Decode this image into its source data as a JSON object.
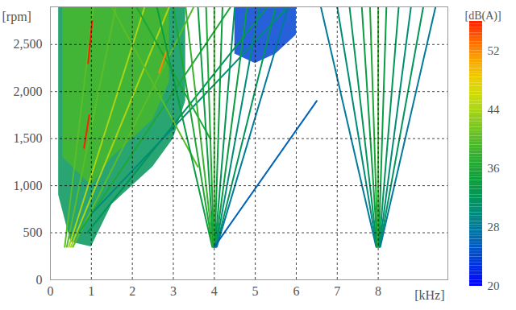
{
  "chart_data": {
    "type": "spectrogram",
    "y_label": "[rpm]",
    "x_label": "[kHz]",
    "xlim": [
      0,
      9.7
    ],
    "xticks": [
      0,
      1,
      2,
      3,
      4,
      5,
      6,
      7,
      8
    ],
    "ylim": [
      0,
      2900
    ],
    "yticks": [
      0,
      500,
      1000,
      1500,
      2000,
      2500
    ],
    "grid": true,
    "colorbar": {
      "label": "[dB(A)]",
      "range": [
        20,
        56
      ],
      "ticks": [
        20,
        28,
        36,
        44,
        52
      ],
      "colors": [
        "#0000ff",
        "#0050d0",
        "#008c8c",
        "#009a3a",
        "#30b030",
        "#8ccc20",
        "#e8e800",
        "#ff9a00",
        "#ff2000"
      ]
    },
    "regions": [
      {
        "x": [
          0.2,
          0.5,
          1.0,
          1.5,
          2.0,
          2.5,
          3.0,
          3.3
        ],
        "y1": [
          900,
          400,
          350,
          800,
          1000,
          1200,
          1500,
          1900
        ],
        "y2": [
          2900,
          2900,
          2900,
          2900,
          2900,
          2900,
          2900,
          2900
        ],
        "db": 32
      },
      {
        "x": [
          0.3,
          1.0,
          1.5,
          2.0,
          2.5,
          2.9
        ],
        "y1": [
          1300,
          1000,
          1300,
          1500,
          1700,
          2100
        ],
        "y2": [
          2900,
          2900,
          2900,
          2900,
          2900,
          2900
        ],
        "db": 39
      },
      {
        "x": [
          4.5,
          5.0,
          5.5,
          6.0
        ],
        "y1": [
          2400,
          2300,
          2400,
          2600
        ],
        "y2": [
          2900,
          2900,
          2900,
          2900
        ],
        "db": 24
      }
    ],
    "lines": [
      {
        "x": [
          0.35,
          1.05
        ],
        "y": [
          350,
          2900
        ],
        "db": 40
      },
      {
        "x": [
          0.4,
          1.6
        ],
        "y": [
          350,
          2900
        ],
        "db": 40
      },
      {
        "x": [
          0.45,
          2.3
        ],
        "y": [
          350,
          2900
        ],
        "db": 44
      },
      {
        "x": [
          0.5,
          2.9
        ],
        "y": [
          350,
          2900
        ],
        "db": 44
      },
      {
        "x": [
          0.55,
          3.5
        ],
        "y": [
          350,
          2900
        ],
        "db": 40
      },
      {
        "x": [
          0.7,
          4.4
        ],
        "y": [
          500,
          2900
        ],
        "db": 36
      },
      {
        "x": [
          0.9,
          5.3
        ],
        "y": [
          500,
          2900
        ],
        "db": 32
      },
      {
        "x": [
          1.0,
          5.8
        ],
        "y": [
          700,
          2900
        ],
        "db": 30
      },
      {
        "x": [
          1.5,
          3.6
        ],
        "y": [
          2900,
          1200
        ],
        "db": 40
      },
      {
        "x": [
          2.1,
          3.9
        ],
        "y": [
          2900,
          1500
        ],
        "db": 36
      },
      {
        "x": [
          0.82,
          0.95
        ],
        "y": [
          1400,
          1750
        ],
        "db": 56
      },
      {
        "x": [
          0.92,
          1.02
        ],
        "y": [
          2300,
          2750
        ],
        "db": 56
      },
      {
        "x": [
          2.65,
          2.85
        ],
        "y": [
          2200,
          2450
        ],
        "db": 52
      },
      {
        "x": [
          3.95,
          2.6
        ],
        "y": [
          350,
          2900
        ],
        "db": 34
      },
      {
        "x": [
          3.96,
          3.0
        ],
        "y": [
          350,
          2900
        ],
        "db": 36
      },
      {
        "x": [
          3.97,
          3.3
        ],
        "y": [
          350,
          2900
        ],
        "db": 38
      },
      {
        "x": [
          3.98,
          3.6
        ],
        "y": [
          350,
          2900
        ],
        "db": 34
      },
      {
        "x": [
          3.99,
          3.8
        ],
        "y": [
          350,
          2900
        ],
        "db": 36
      },
      {
        "x": [
          4.0,
          4.0
        ],
        "y": [
          350,
          2900
        ],
        "db": 38
      },
      {
        "x": [
          4.01,
          4.2
        ],
        "y": [
          350,
          2900
        ],
        "db": 34
      },
      {
        "x": [
          4.02,
          4.5
        ],
        "y": [
          350,
          2900
        ],
        "db": 32
      },
      {
        "x": [
          4.03,
          4.8
        ],
        "y": [
          350,
          2900
        ],
        "db": 34
      },
      {
        "x": [
          4.04,
          5.1
        ],
        "y": [
          350,
          2900
        ],
        "db": 30
      },
      {
        "x": [
          4.05,
          5.5
        ],
        "y": [
          350,
          2900
        ],
        "db": 32
      },
      {
        "x": [
          4.06,
          5.8
        ],
        "y": [
          350,
          2900
        ],
        "db": 28
      },
      {
        "x": [
          4.0,
          6.5
        ],
        "y": [
          350,
          1900
        ],
        "db": 26
      },
      {
        "x": [
          7.95,
          6.6
        ],
        "y": [
          350,
          2900
        ],
        "db": 28
      },
      {
        "x": [
          7.96,
          7.0
        ],
        "y": [
          350,
          2900
        ],
        "db": 30
      },
      {
        "x": [
          7.97,
          7.3
        ],
        "y": [
          350,
          2900
        ],
        "db": 32
      },
      {
        "x": [
          7.98,
          7.6
        ],
        "y": [
          350,
          2900
        ],
        "db": 34
      },
      {
        "x": [
          7.99,
          7.8
        ],
        "y": [
          350,
          2900
        ],
        "db": 36
      },
      {
        "x": [
          8.0,
          8.0
        ],
        "y": [
          350,
          2900
        ],
        "db": 38
      },
      {
        "x": [
          8.01,
          8.2
        ],
        "y": [
          350,
          2900
        ],
        "db": 34
      },
      {
        "x": [
          8.02,
          8.5
        ],
        "y": [
          350,
          2900
        ],
        "db": 32
      },
      {
        "x": [
          8.03,
          8.8
        ],
        "y": [
          350,
          2900
        ],
        "db": 30
      },
      {
        "x": [
          8.04,
          9.1
        ],
        "y": [
          350,
          2900
        ],
        "db": 32
      },
      {
        "x": [
          8.05,
          9.4
        ],
        "y": [
          350,
          2900
        ],
        "db": 28
      }
    ]
  }
}
